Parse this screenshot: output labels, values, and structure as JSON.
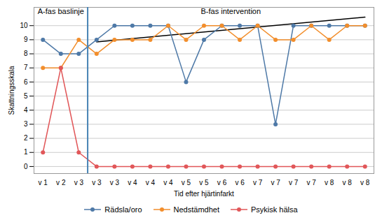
{
  "chart_data": {
    "type": "line",
    "xlabel": "Tid efter hjärtinfarkt",
    "ylabel": "Skattningsskala",
    "categories": [
      "v 1",
      "v 2",
      "v 3",
      "v 3",
      "v 3",
      "v 4",
      "v 4",
      "v 4",
      "v 5",
      "v 5",
      "v 6",
      "v 6",
      "v 7",
      "v 7",
      "v 7",
      "v 7",
      "v 8",
      "v 8",
      "v 8"
    ],
    "series": [
      {
        "name": "Rädsla/oro",
        "marker": "circle",
        "values": [
          9,
          8,
          8,
          9,
          10,
          10,
          10,
          10,
          6,
          9,
          10,
          10,
          10,
          3,
          10,
          10,
          10,
          10,
          10
        ]
      },
      {
        "name": "Nedstämdhet",
        "marker": "circle",
        "values": [
          7,
          7,
          9,
          8,
          9,
          9,
          9,
          10,
          9,
          10,
          10,
          9,
          10,
          9,
          9,
          10,
          9,
          10,
          10
        ]
      },
      {
        "name": "Psykisk hälsa",
        "marker": "circle",
        "values": [
          1,
          7,
          1,
          0,
          0,
          0,
          0,
          0,
          0,
          0,
          0,
          0,
          0,
          0,
          0,
          0,
          0,
          0,
          0
        ]
      }
    ],
    "trendline": {
      "x": [
        3,
        18
      ],
      "values": [
        8.85,
        10.6
      ]
    },
    "vlines": [
      {
        "x": 2.5
      }
    ],
    "annotations": [
      {
        "text": "A-fas baslinje",
        "x": 1,
        "y": 10.85
      },
      {
        "text": "B-fas intervention",
        "x": 10.5,
        "y": 10.85
      }
    ],
    "ylim": [
      -0.5,
      11.3
    ],
    "yticks": [
      0,
      1,
      2,
      3,
      4,
      5,
      6,
      7,
      8,
      9,
      10
    ],
    "grid": true,
    "legend": "bottom"
  }
}
